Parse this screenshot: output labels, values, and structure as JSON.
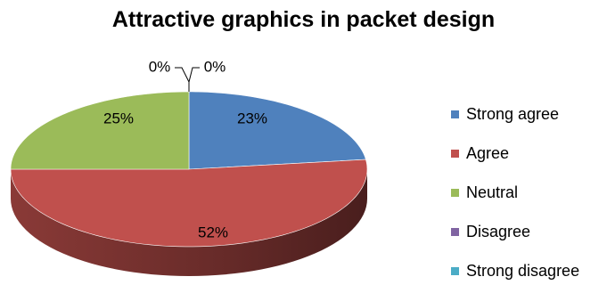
{
  "chart_data": {
    "type": "pie",
    "title": "Attractive graphics in packet design",
    "categories": [
      "Strong agree",
      "Agree",
      "Neutral",
      "Disagree",
      "Strong disagree"
    ],
    "values": [
      23,
      52,
      25,
      0,
      0
    ],
    "labels": [
      "23%",
      "52%",
      "25%",
      "0%",
      "0%"
    ],
    "colors": [
      "#4F81BD",
      "#C0504D",
      "#9BBB59",
      "#8064A2",
      "#4BACC6"
    ],
    "unit": "%",
    "style": "3d",
    "legend": "right"
  }
}
